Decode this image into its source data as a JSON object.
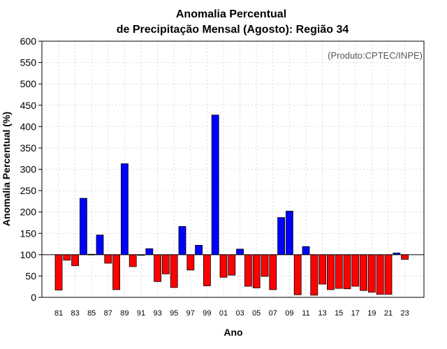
{
  "chart_data": {
    "type": "bar",
    "title_line1": "Anomalia Percentual",
    "title_line2": "de Precipitação Mensal (Agosto): Região 34",
    "xlabel": "Ano",
    "ylabel": "Anomalia Percentual (%)",
    "credit": "(Produto:CPTEC/INPE)",
    "ylim": [
      0,
      600
    ],
    "baseline": 100,
    "yticks": [
      0,
      50,
      100,
      150,
      200,
      250,
      300,
      350,
      400,
      450,
      500,
      550,
      600
    ],
    "xtick_labels": [
      "81",
      "83",
      "85",
      "87",
      "89",
      "91",
      "93",
      "95",
      "97",
      "99",
      "01",
      "03",
      "05",
      "07",
      "09",
      "11",
      "13",
      "15",
      "17",
      "19",
      "21",
      "23"
    ],
    "grid": true,
    "colors": {
      "above": "#0000ff",
      "below": "#ff0000",
      "outline": "#000000",
      "grid": "#d9d9d9"
    },
    "categories": [
      "1981",
      "1982",
      "1983",
      "1984",
      "1985",
      "1986",
      "1987",
      "1988",
      "1989",
      "1990",
      "1991",
      "1992",
      "1993",
      "1994",
      "1995",
      "1996",
      "1997",
      "1998",
      "1999",
      "2000",
      "2001",
      "2002",
      "2003",
      "2004",
      "2005",
      "2006",
      "2007",
      "2008",
      "2009",
      "2010",
      "2011",
      "2012",
      "2013",
      "2014",
      "2015",
      "2016",
      "2017",
      "2018",
      "2019",
      "2020",
      "2021",
      "2022",
      "2023"
    ],
    "values": [
      17,
      87,
      74,
      232,
      101,
      146,
      80,
      18,
      313,
      72,
      100,
      114,
      37,
      55,
      23,
      166,
      64,
      122,
      27,
      427,
      47,
      52,
      113,
      26,
      22,
      49,
      18,
      187,
      202,
      6,
      119,
      5,
      31,
      18,
      21,
      20,
      26,
      16,
      12,
      7,
      7,
      104,
      89
    ]
  }
}
